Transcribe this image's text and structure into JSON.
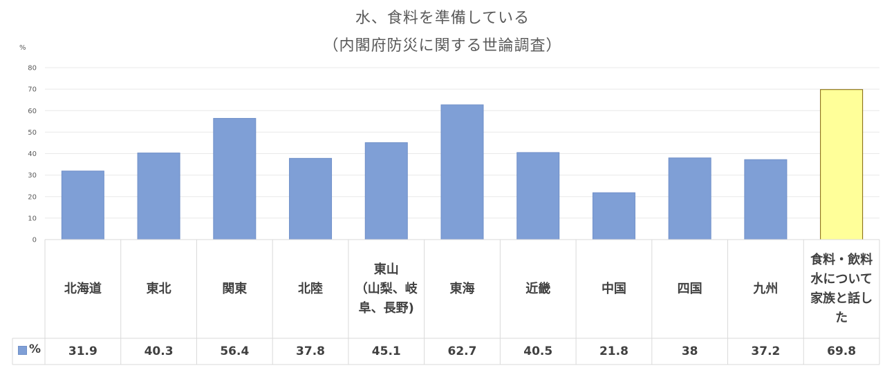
{
  "chart_data": {
    "type": "bar",
    "title": "水、食料を準備している",
    "subtitle": "（内閣府防災に関する世論調査）",
    "ylabel": "%",
    "ylim": [
      0,
      80
    ],
    "yticks": [
      0,
      10,
      20,
      30,
      40,
      50,
      60,
      70,
      80
    ],
    "grid": true,
    "legend_position": "bottom-left",
    "categories": [
      "北海道",
      "東北",
      "関東",
      "北陸",
      "東山\n（山梨、岐\n阜、長野)",
      "東海",
      "近畿",
      "中国",
      "四国",
      "九州",
      "食料・飲料\n水について\n家族と話し\nた"
    ],
    "series": [
      {
        "name": "%",
        "values": [
          31.9,
          40.3,
          56.4,
          37.8,
          45.1,
          62.7,
          40.5,
          21.8,
          38,
          37.2,
          69.8
        ]
      }
    ],
    "value_labels": [
      "31.9",
      "40.3",
      "56.4",
      "37.8",
      "45.1",
      "62.7",
      "40.5",
      "21.8",
      "38",
      "37.2",
      "69.8"
    ],
    "colors": {
      "bar": "#7f9fd6",
      "bar_border": "#6f8fc8",
      "highlight_bar": "#ffff99",
      "highlight_border": "#7f6000",
      "grid": "#e8e8e8",
      "table_border": "#d9d9d9"
    },
    "highlight_index": 10
  }
}
